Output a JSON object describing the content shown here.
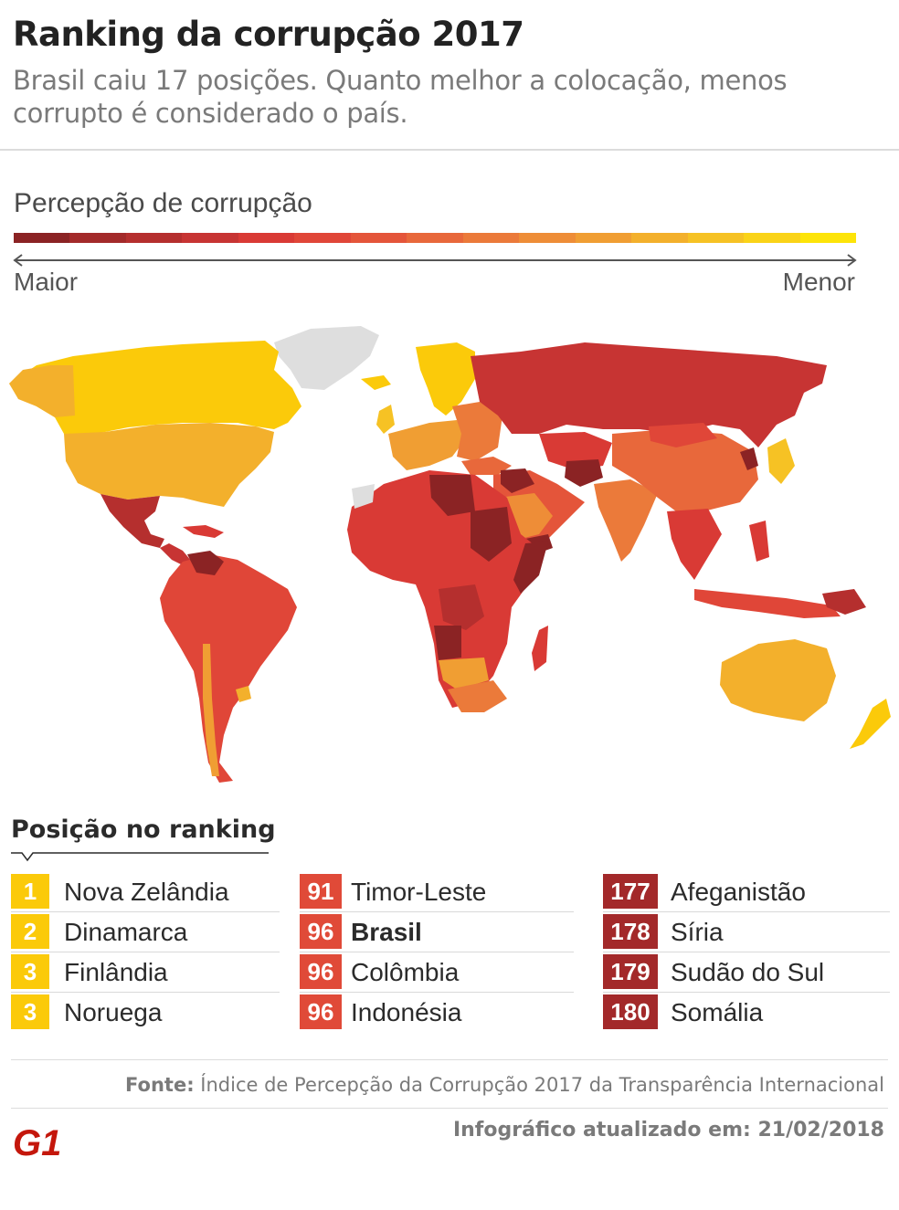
{
  "header": {
    "title": "Ranking da corrupção 2017",
    "subtitle": "Brasil caiu 17 posições. Quanto melhor a colocação, menos corrupto é considerado o país."
  },
  "scale": {
    "title": "Percepção de corrupção",
    "left_label": "Maior",
    "right_label": "Menor",
    "colors": [
      "#8b2324",
      "#a32a2a",
      "#b52f2e",
      "#c73433",
      "#d93a35",
      "#e04638",
      "#e4553a",
      "#e8683b",
      "#eb7a3a",
      "#ee8d37",
      "#f09e33",
      "#f3b02c",
      "#f6c224",
      "#fad318",
      "#fde409"
    ]
  },
  "map": {
    "legend_colors": {
      "darkest": "#8b2324",
      "dark": "#b52f2e",
      "red": "#d93a35",
      "redorange": "#e4553a",
      "orange": "#e8683b",
      "amber": "#f09e33",
      "gold": "#f3b02c",
      "yellow": "#fbca0a",
      "nodata": "#dedede"
    }
  },
  "ranking": {
    "title": "Posição no ranking",
    "columns": [
      [
        {
          "pos": "1",
          "country": "Nova Zelândia",
          "color": "#fbca0a",
          "bold": false
        },
        {
          "pos": "2",
          "country": "Dinamarca",
          "color": "#fbca0a",
          "bold": false
        },
        {
          "pos": "3",
          "country": "Finlândia",
          "color": "#fbca0a",
          "bold": false
        },
        {
          "pos": "3",
          "country": "Noruega",
          "color": "#fbca0a",
          "bold": false
        }
      ],
      [
        {
          "pos": "91",
          "country": "Timor-Leste",
          "color": "#e04a38",
          "bold": false
        },
        {
          "pos": "96",
          "country": "Brasil",
          "color": "#e04a38",
          "bold": true
        },
        {
          "pos": "96",
          "country": "Colômbia",
          "color": "#e04a38",
          "bold": false
        },
        {
          "pos": "96",
          "country": "Indonésia",
          "color": "#e04a38",
          "bold": false
        }
      ],
      [
        {
          "pos": "177",
          "country": "Afeganistão",
          "color": "#a3292a",
          "bold": false
        },
        {
          "pos": "178",
          "country": "Síria",
          "color": "#a3292a",
          "bold": false
        },
        {
          "pos": "179",
          "country": "Sudão do Sul",
          "color": "#a3292a",
          "bold": false
        },
        {
          "pos": "180",
          "country": "Somália",
          "color": "#a3292a",
          "bold": false
        }
      ]
    ]
  },
  "footer": {
    "source_label": "Fonte:",
    "source_text": "Índice de Percepção da Corrupção 2017 da Transparência Internacional",
    "updated": "Infográfico atualizado em: 21/02/2018",
    "logo_text": "G1"
  }
}
